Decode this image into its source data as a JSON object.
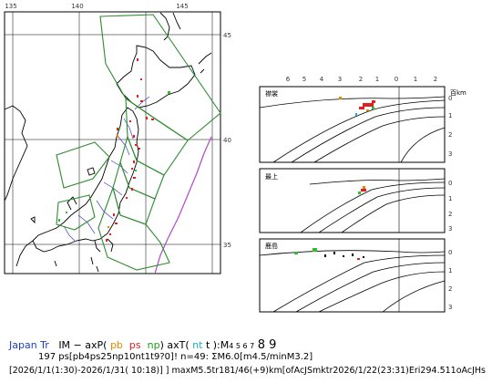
{
  "map": {
    "lon_ticks": [
      "135",
      "140",
      "145"
    ],
    "lat_ticks": [
      "45",
      "40",
      "35"
    ]
  },
  "sections": {
    "x_ticks": [
      "6",
      "5",
      "4",
      "3",
      "2",
      "1",
      "0",
      "1",
      "2"
    ],
    "unit_label": "百km",
    "depth_ticks": [
      "0",
      "1",
      "2",
      "3"
    ],
    "panels": [
      {
        "label": "襟裳"
      },
      {
        "label": "最上"
      },
      {
        "label": "鹿島"
      }
    ]
  },
  "caption": {
    "region": "Japan Tr",
    "line1_a": "IM − axP(",
    "pb": "pb",
    "ps": "ps",
    "np": "np",
    "line1_b": ") axT(",
    "nt": "nt",
    "line1_c": "t ):M",
    "mags_small": "4 5 6 7",
    "mags_large": "8 9",
    "line2": "197 ps[pb4ps25np10nt1t9?0]! n=49: ΣM6.0[m4.5/minM3.2]",
    "line3": "[2026/1/1(1:30)-2026/1/31( 10:18)] ] maxM5.5tr181/46(+9)km[ofAcJSmktr2026/1/22(23:31)Eri294.511oAcJHs"
  },
  "colors": {
    "land": "#000000",
    "zones": "#2e8b2e",
    "prefecture": "#3a3ad0",
    "trench": "#b048c8",
    "quake_shallow": "#e02020",
    "quake_mid": "#e08a00",
    "quake_green": "#2cc02c"
  }
}
